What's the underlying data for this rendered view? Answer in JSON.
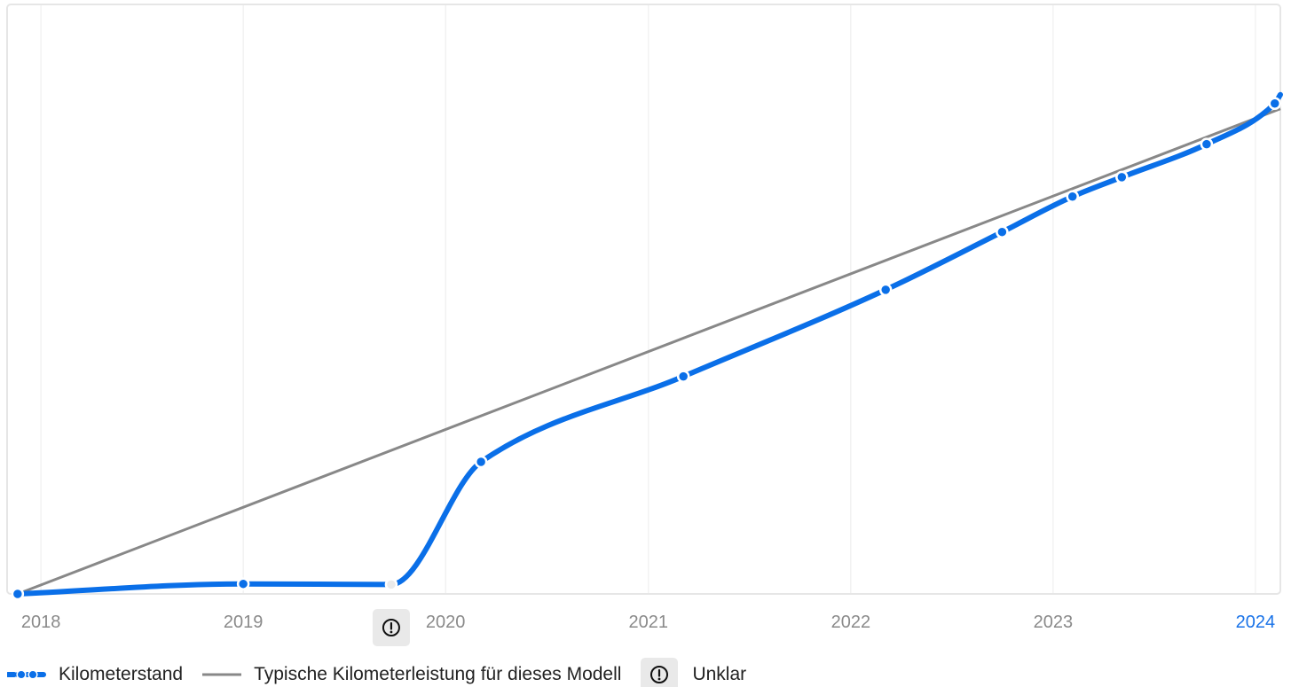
{
  "chart_data": {
    "type": "line",
    "x_axis": {
      "type": "date",
      "range": [
        "2017-11-01",
        "2024-02-15"
      ],
      "ticks": [
        {
          "label": "2018",
          "value": "2018-01-01",
          "highlighted": false
        },
        {
          "label": "2019",
          "value": "2019-01-01",
          "highlighted": false
        },
        {
          "label": "2020",
          "value": "2020-01-01",
          "highlighted": false
        },
        {
          "label": "2021",
          "value": "2021-01-01",
          "highlighted": false
        },
        {
          "label": "2022",
          "value": "2022-01-01",
          "highlighted": false
        },
        {
          "label": "2023",
          "value": "2023-01-01",
          "highlighted": false
        },
        {
          "label": "2024",
          "value": "2024-01-01",
          "highlighted": true
        }
      ],
      "grid": true
    },
    "y_axis": {
      "range": [
        0,
        100
      ],
      "ticks_visible": false,
      "grid": false
    },
    "series": [
      {
        "name": "Kilometerstand",
        "color": "#0a6fe8",
        "style": "smooth-line-with-markers",
        "points": [
          {
            "x": "2017-11-20",
            "y": 0.0
          },
          {
            "x": "2019-01-01",
            "y": 1.7
          },
          {
            "x": "2019-09-25",
            "y": 1.6,
            "status": "unklar"
          },
          {
            "x": "2020-03-05",
            "y": 22.4
          },
          {
            "x": "2021-03-05",
            "y": 36.9
          },
          {
            "x": "2022-03-05",
            "y": 51.6
          },
          {
            "x": "2022-10-01",
            "y": 61.4
          },
          {
            "x": "2023-02-05",
            "y": 67.4
          },
          {
            "x": "2023-05-05",
            "y": 70.7
          },
          {
            "x": "2023-10-05",
            "y": 76.3
          },
          {
            "x": "2024-02-05",
            "y": 83.2
          }
        ],
        "line_end": {
          "x": "2024-02-15",
          "y": 84.7
        }
      },
      {
        "name": "Typische Kilometerleistung für dieses Modell",
        "color": "#888888",
        "style": "straight-line",
        "points": [
          {
            "x": "2017-11-20",
            "y": 0.0
          },
          {
            "x": "2024-02-15",
            "y": 82.3
          }
        ]
      }
    ],
    "annotations": [
      {
        "type": "warning-marker",
        "icon": "exclamation-circle-icon",
        "x": "2019-09-25",
        "meaning": "Unklar"
      }
    ],
    "legend": {
      "placement": "bottom-left",
      "items": [
        {
          "label": "Kilometerstand",
          "swatch": "dashed-with-dots",
          "color": "#0a6fe8"
        },
        {
          "label": "Typische Kilometerleistung für dieses Modell",
          "swatch": "solid-line",
          "color": "#888888"
        },
        {
          "label": "Unklar",
          "swatch": "warning-box",
          "icon": "exclamation-circle-icon"
        }
      ]
    }
  }
}
